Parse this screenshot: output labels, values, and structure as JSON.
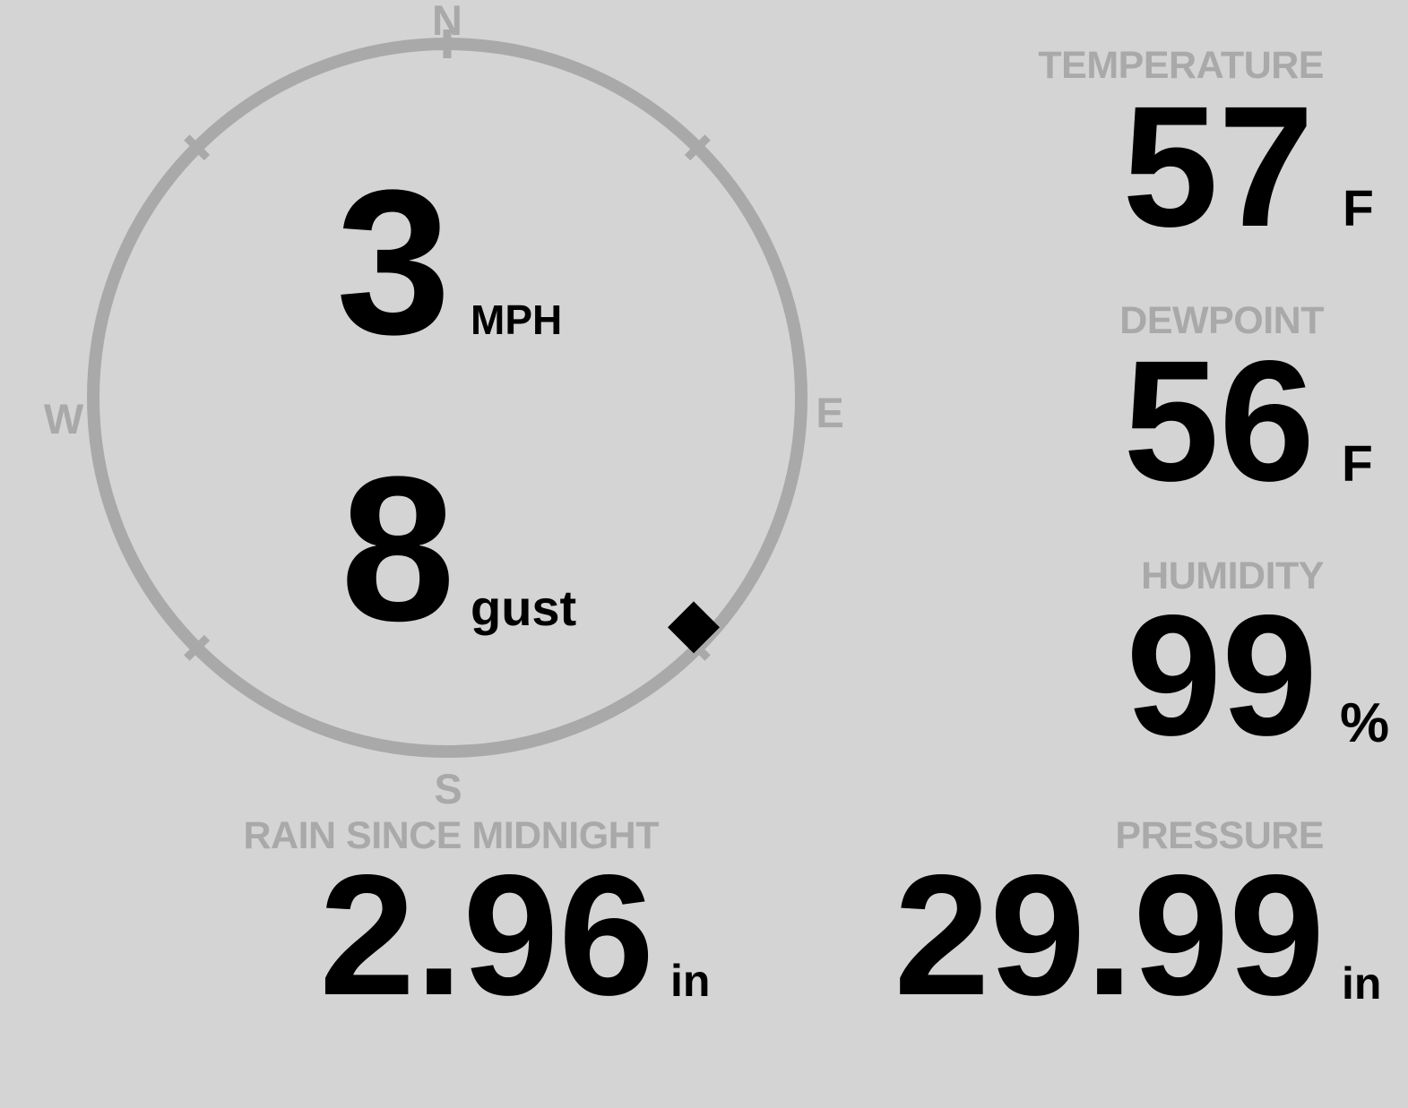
{
  "theme": {
    "background": "#d4d4d4",
    "muted_gray": "#a9a9a9",
    "ink": "#000000"
  },
  "wind": {
    "compass_labels": {
      "north": "N",
      "east": "E",
      "south": "S",
      "west": "W"
    },
    "speed": {
      "value": "3",
      "unit": "MPH"
    },
    "gust": {
      "value": "8",
      "unit": "gust"
    },
    "direction_degrees": 133
  },
  "readings": {
    "temperature": {
      "label": "TEMPERATURE",
      "value": "57",
      "unit": "F"
    },
    "dewpoint": {
      "label": "DEWPOINT",
      "value": "56",
      "unit": "F"
    },
    "humidity": {
      "label": "HUMIDITY",
      "value": "99",
      "unit": "%"
    },
    "rain_since_midnight": {
      "label": "RAIN SINCE MIDNIGHT",
      "value": "2.96",
      "unit": "in"
    },
    "pressure": {
      "label": "PRESSURE",
      "value": "29.99",
      "unit": "in"
    }
  }
}
